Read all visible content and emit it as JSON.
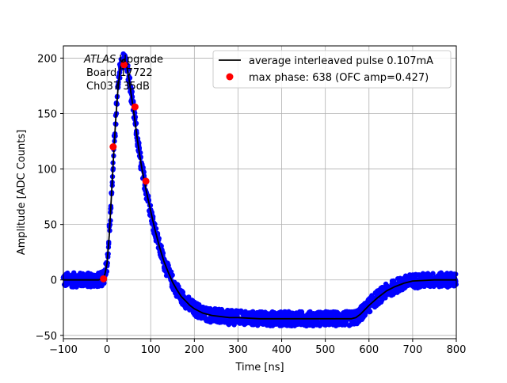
{
  "chart_data": {
    "type": "line",
    "xlabel": "Time [ns]",
    "ylabel": "Amplitude [ADC Counts]",
    "xlim": [
      -100,
      800
    ],
    "ylim": [
      -53,
      211
    ],
    "xticks": [
      -100,
      0,
      100,
      200,
      300,
      400,
      500,
      600,
      700,
      800
    ],
    "yticks": [
      -50,
      0,
      50,
      100,
      150,
      200
    ],
    "grid": true,
    "legend_position": "top-right",
    "annotation": {
      "italic": "ATLAS",
      "line1_rest": " Upgrade",
      "line2": "Board 17722",
      "line3": "Ch037 35dB"
    },
    "colors": {
      "scatter": "#0000ff",
      "average_line": "#000000",
      "max_phase": "#ff0000",
      "grid": "#b0b0b0"
    },
    "series": [
      {
        "name": "average interleaved pulse 0.107mA",
        "kind": "line",
        "x": [
          -100,
          -50,
          -20,
          -10,
          -5,
          0,
          5,
          10,
          15,
          20,
          25,
          30,
          35,
          40,
          45,
          50,
          55,
          60,
          65,
          70,
          75,
          80,
          90,
          100,
          110,
          120,
          130,
          140,
          150,
          160,
          170,
          180,
          190,
          200,
          210,
          220,
          240,
          260,
          280,
          300,
          350,
          400,
          450,
          500,
          540,
          560,
          570,
          580,
          590,
          600,
          620,
          640,
          660,
          680,
          700,
          750,
          800
        ],
        "y": [
          0,
          0,
          0,
          1,
          5,
          15,
          40,
          75,
          112,
          145,
          172,
          190,
          198,
          199,
          193,
          182,
          168,
          155,
          140,
          125,
          112,
          100,
          80,
          62,
          45,
          30,
          17,
          7,
          -2,
          -9,
          -15,
          -19,
          -23,
          -26,
          -28,
          -30,
          -32,
          -33,
          -34,
          -34,
          -35,
          -35,
          -35,
          -35,
          -35,
          -35,
          -34,
          -31,
          -27,
          -23,
          -16,
          -10,
          -6,
          -3,
          -1,
          0,
          0
        ]
      },
      {
        "name": "max phase: 638 (OFC amp=0.427)",
        "kind": "points",
        "x": [
          -8,
          14,
          39,
          64,
          89
        ],
        "y": [
          1,
          120,
          194,
          156,
          89
        ]
      }
    ]
  }
}
